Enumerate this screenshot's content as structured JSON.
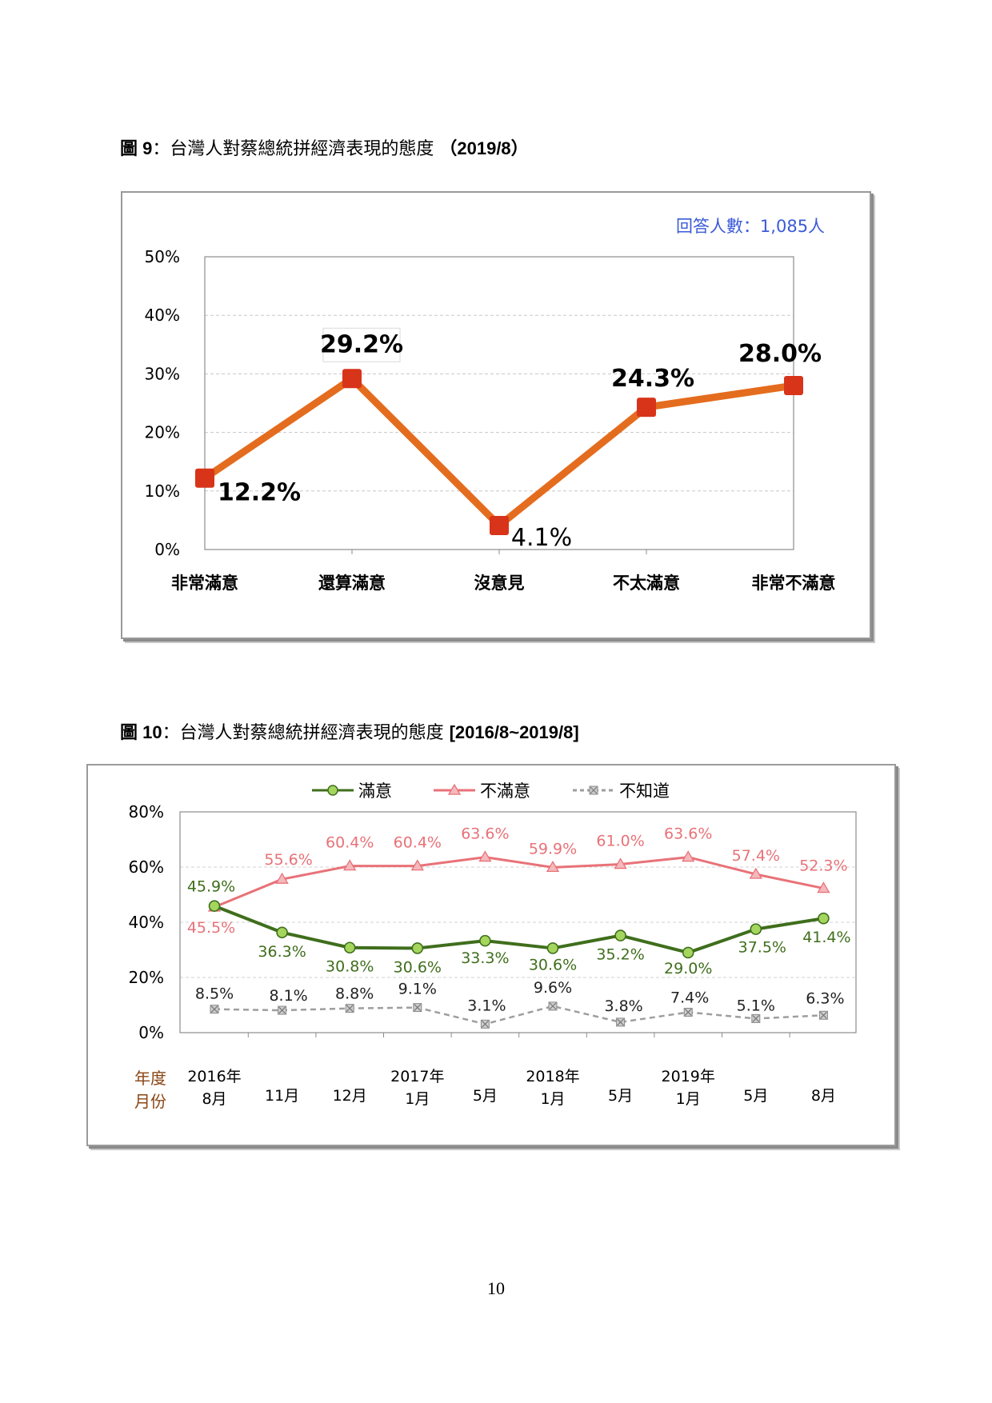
{
  "figure9": {
    "label": "圖 9",
    "title": "：台灣人對蔡總統拼經濟表現的態度",
    "period": "（2019/8）",
    "respondents": "回答人數：1,085人"
  },
  "figure10": {
    "label": "圖 10",
    "title": "：台灣人對蔡總統拼經濟表現的態度",
    "period": "[2016/8~2019/8]",
    "axis_row_labels": [
      "年度",
      "月份"
    ]
  },
  "page_number": "10",
  "colors": {
    "fig9_line": "#e46c1e",
    "fig9_marker": "#d8341a",
    "satisfied": "#3f6e1c",
    "satisfied_marker": "#a4d65e",
    "dissatisfied": "#e87278",
    "dissatisfied_marker": "#f4b9bc",
    "unknown": "#9e9e9e",
    "respondents_text": "#3b5bd7",
    "axis_row_labels": "#8b4513"
  },
  "chart_data": [
    {
      "type": "line",
      "categories": [
        "非常滿意",
        "還算滿意",
        "沒意見",
        "不太滿意",
        "非常不滿意"
      ],
      "values": [
        12.2,
        29.2,
        4.1,
        24.3,
        28.0
      ],
      "data_labels": [
        "12.2%",
        "29.2%",
        "4.1%",
        "24.3%",
        "28.0%"
      ],
      "ylim": [
        0,
        50
      ],
      "yticks": [
        "0%",
        "10%",
        "20%",
        "30%",
        "40%",
        "50%"
      ],
      "grid": true,
      "legend": "none"
    },
    {
      "type": "line",
      "categories": [
        "8月",
        "11月",
        "12月",
        "1月",
        "5月",
        "1月",
        "5月",
        "1月",
        "5月",
        "8月"
      ],
      "year_labels": [
        "2016年",
        "",
        "",
        "2017年",
        "",
        "2018年",
        "",
        "2019年",
        "",
        ""
      ],
      "series": [
        {
          "name": "滿意",
          "values": [
            45.9,
            36.3,
            30.8,
            30.6,
            33.3,
            30.6,
            35.2,
            29.0,
            37.5,
            41.4
          ],
          "data_labels": [
            "45.9%",
            "36.3%",
            "30.8%",
            "30.6%",
            "33.3%",
            "30.6%",
            "35.2%",
            "29.0%",
            "37.5%",
            "41.4%"
          ]
        },
        {
          "name": "不滿意",
          "values": [
            45.5,
            55.6,
            60.4,
            60.4,
            63.6,
            59.9,
            61.0,
            63.6,
            57.4,
            52.3
          ],
          "data_labels": [
            "45.5%",
            "55.6%",
            "60.4%",
            "60.4%",
            "63.6%",
            "59.9%",
            "61.0%",
            "63.6%",
            "57.4%",
            "52.3%"
          ]
        },
        {
          "name": "不知道",
          "values": [
            8.5,
            8.1,
            8.8,
            9.1,
            3.1,
            9.6,
            3.8,
            7.4,
            5.1,
            6.3
          ],
          "data_labels": [
            "8.5%",
            "8.1%",
            "8.8%",
            "9.1%",
            "3.1%",
            "9.6%",
            "3.8%",
            "7.4%",
            "5.1%",
            "6.3%"
          ]
        }
      ],
      "ylim": [
        0,
        80
      ],
      "yticks": [
        "0%",
        "20%",
        "40%",
        "60%",
        "80%"
      ],
      "grid": true,
      "legend": "top"
    }
  ]
}
